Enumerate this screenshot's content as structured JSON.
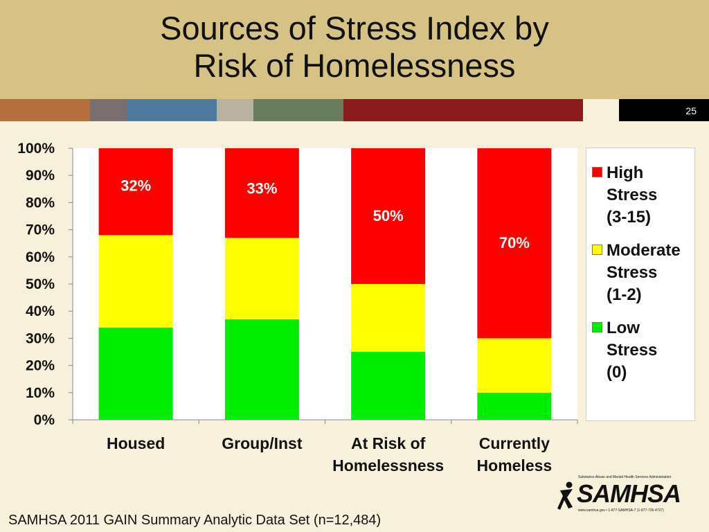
{
  "slide": {
    "title": "Sources of Stress Index by\nRisk of Homelessness",
    "number": "25",
    "footnote": "SAMHSA 2011 GAIN Summary Analytic Data Set (n=12,484)",
    "logo_text": "SAMHSA",
    "logo_agency": "Substance Abuse and Mental Health Services Administration",
    "logo_contact": "www.samhsa.gov • 1-877-SAMHSA-7 (1-877-726-4727)"
  },
  "colors": {
    "header": "#d6c284",
    "stripe": [
      "#b66f3e",
      "#7a6e71",
      "#4f7a9b",
      "#b9b1a1",
      "#697b5d",
      "#8b1c1e",
      "#f7f1dc",
      "#000000"
    ]
  },
  "chart_data": {
    "type": "bar",
    "stacked": true,
    "categories": [
      "Housed",
      "Group/Inst",
      "At Risk of Homelessness",
      "Currently Homeless"
    ],
    "category_labels": [
      [
        "Housed"
      ],
      [
        "Group/Inst"
      ],
      [
        "At Risk of",
        "Homelessness"
      ],
      [
        "Currently",
        "Homeless"
      ]
    ],
    "series": [
      {
        "name": "Low Stress (0)",
        "legend_lines": [
          "Low",
          "Stress",
          "(0)"
        ],
        "color": "#00ee00",
        "values": [
          34,
          37,
          25,
          10
        ]
      },
      {
        "name": "Moderate Stress (1-2)",
        "legend_lines": [
          "Moderate",
          "Stress",
          "(1-2)"
        ],
        "color": "#ffff00",
        "values": [
          34,
          30,
          25,
          20
        ]
      },
      {
        "name": "High Stress (3-15)",
        "legend_lines": [
          "High",
          "Stress",
          "(3-15)"
        ],
        "color": "#ff0000",
        "values": [
          32,
          33,
          50,
          70
        ]
      }
    ],
    "data_labels": [
      "32%",
      "33%",
      "50%",
      "70%"
    ],
    "yticks": [
      "0%",
      "10%",
      "20%",
      "30%",
      "40%",
      "50%",
      "60%",
      "70%",
      "80%",
      "90%",
      "100%"
    ],
    "ylim": [
      0,
      100
    ],
    "legend_position": "right",
    "grid": false
  }
}
